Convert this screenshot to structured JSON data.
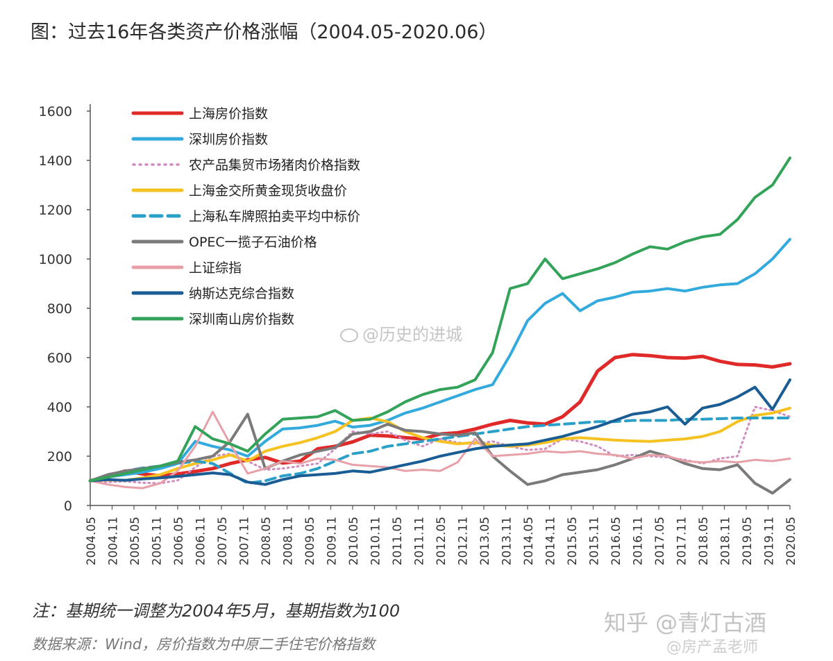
{
  "title": "图：过去16年各类资产价格涨幅（2004.05-2020.06）",
  "note": "注：基期统一调整为2004年5月，基期指数为100",
  "source": "数据来源：Wind，房价指数为中原二手住宅价格指数",
  "watermarks": {
    "weibo": "@历史的进城",
    "zhihu": "知乎 @青灯古酒",
    "corner": "@房产孟老师"
  },
  "chart_data": {
    "type": "line",
    "title": "",
    "xlabel": "",
    "ylabel": "",
    "ylim": [
      0,
      1600
    ],
    "yticks": [
      0,
      200,
      400,
      600,
      800,
      1000,
      1200,
      1400,
      1600
    ],
    "x_ticks": [
      "2004.05",
      "2004.11",
      "2005.05",
      "2005.11",
      "2006.05",
      "2006.11",
      "2007.05",
      "2007.11",
      "2008.05",
      "2008.11",
      "2009.05",
      "2009.11",
      "2010.05",
      "2010.11",
      "2011.05",
      "2011.11",
      "2012.05",
      "2012.11",
      "2013.05",
      "2013.11",
      "2014.05",
      "2014.11",
      "2015.05",
      "2015.11",
      "2016.05",
      "2016.11",
      "2017.05",
      "2017.11",
      "2018.05",
      "2018.11",
      "2019.05",
      "2019.11",
      "2020.05"
    ],
    "legend_position": "top-left",
    "grid": false,
    "series": [
      {
        "name": "上海房价指数",
        "color": "#e02a2a",
        "style": "solid",
        "width": 5,
        "values": [
          100,
          118,
          140,
          128,
          120,
          128,
          138,
          150,
          170,
          185,
          195,
          172,
          180,
          230,
          240,
          258,
          285,
          282,
          275,
          270,
          290,
          295,
          310,
          330,
          345,
          335,
          330,
          360,
          420,
          545,
          600,
          612,
          608,
          600,
          598,
          605,
          585,
          572,
          570,
          562,
          575
        ]
      },
      {
        "name": "深圳房价指数",
        "color": "#33aadd",
        "style": "solid",
        "width": 4,
        "values": [
          100,
          115,
          125,
          135,
          150,
          170,
          260,
          240,
          225,
          200,
          260,
          310,
          315,
          325,
          342,
          318,
          325,
          345,
          375,
          395,
          420,
          445,
          470,
          490,
          610,
          750,
          820,
          860,
          790,
          830,
          845,
          865,
          870,
          880,
          870,
          885,
          895,
          900,
          940,
          1000,
          1080
        ]
      },
      {
        "name": "农产品集贸市场猪肉价格指数",
        "color": "#d08cc0",
        "style": "dot",
        "width": 3,
        "values": [
          100,
          95,
          98,
          92,
          90,
          102,
          155,
          200,
          210,
          180,
          145,
          150,
          160,
          170,
          230,
          300,
          290,
          300,
          265,
          240,
          270,
          255,
          250,
          260,
          240,
          225,
          230,
          270,
          260,
          240,
          200,
          205,
          200,
          195,
          185,
          170,
          190,
          200,
          400,
          385,
          360
        ]
      },
      {
        "name": "上海金交所黄金现货收盘价",
        "color": "#f5c221",
        "style": "solid",
        "width": 4,
        "values": [
          100,
          104,
          102,
          112,
          125,
          150,
          170,
          185,
          205,
          180,
          220,
          240,
          255,
          275,
          300,
          345,
          355,
          340,
          300,
          275,
          260,
          250,
          255,
          245,
          240,
          245,
          255,
          270,
          275,
          270,
          265,
          262,
          260,
          265,
          270,
          280,
          300,
          340,
          365,
          375,
          395
        ]
      },
      {
        "name": "上海私车牌照拍卖平均中标价",
        "color": "#2aa0c8",
        "style": "dash",
        "width": 4,
        "values": [
          100,
          120,
          140,
          152,
          160,
          170,
          180,
          170,
          130,
          90,
          100,
          120,
          130,
          150,
          180,
          210,
          220,
          240,
          250,
          260,
          270,
          280,
          290,
          300,
          310,
          320,
          325,
          330,
          335,
          340,
          340,
          345,
          345,
          345,
          350,
          350,
          352,
          355,
          355,
          355,
          355
        ]
      },
      {
        "name": "OPEC一揽子石油价格",
        "color": "#7a7a7a",
        "style": "solid",
        "width": 4,
        "values": [
          100,
          125,
          140,
          150,
          160,
          175,
          185,
          200,
          260,
          370,
          150,
          180,
          205,
          220,
          235,
          290,
          300,
          330,
          305,
          300,
          290,
          285,
          295,
          200,
          140,
          85,
          100,
          125,
          135,
          145,
          165,
          190,
          220,
          200,
          170,
          150,
          145,
          165,
          90,
          50,
          105
        ]
      },
      {
        "name": "上证综指",
        "color": "#e8a0a8",
        "style": "solid",
        "width": 3,
        "values": [
          100,
          85,
          75,
          70,
          90,
          140,
          240,
          380,
          250,
          130,
          150,
          180,
          170,
          190,
          185,
          165,
          160,
          155,
          140,
          145,
          140,
          175,
          270,
          200,
          205,
          210,
          220,
          215,
          220,
          210,
          205,
          190,
          205,
          200,
          180,
          175,
          180,
          175,
          185,
          180,
          190
        ]
      },
      {
        "name": "纳斯达克综合指数",
        "color": "#1a5c94",
        "style": "solid",
        "width": 4,
        "values": [
          100,
          105,
          102,
          108,
          112,
          118,
          125,
          132,
          125,
          95,
          85,
          105,
          120,
          125,
          130,
          140,
          135,
          150,
          165,
          180,
          200,
          215,
          230,
          240,
          245,
          250,
          265,
          280,
          300,
          320,
          345,
          370,
          380,
          400,
          330,
          395,
          410,
          440,
          480,
          390,
          510
        ]
      },
      {
        "name": "深圳南山房价指数",
        "color": "#33a35a",
        "style": "solid",
        "width": 4,
        "values": [
          100,
          115,
          130,
          145,
          160,
          180,
          320,
          270,
          250,
          220,
          290,
          350,
          355,
          360,
          385,
          345,
          350,
          380,
          420,
          450,
          470,
          480,
          510,
          620,
          880,
          900,
          1000,
          920,
          940,
          960,
          985,
          1020,
          1050,
          1040,
          1070,
          1090,
          1100,
          1160,
          1250,
          1300,
          1410
        ]
      }
    ]
  }
}
